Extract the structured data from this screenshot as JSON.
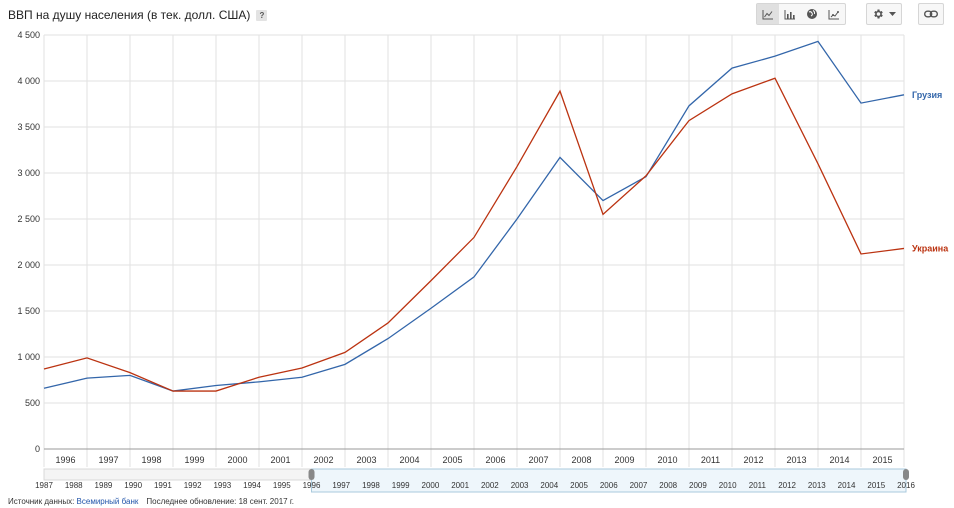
{
  "header": {
    "title": "ВВП на душу населения (в тек. долл. США)",
    "help_label": "?"
  },
  "toolbar": {
    "view_icons": [
      "line-chart-icon",
      "bar-chart-icon",
      "globe-icon",
      "trend-chart-icon"
    ],
    "settings_icon": "gear-icon",
    "dropdown_icon": "caret-down-icon",
    "link_icon": "link-icon"
  },
  "footer": {
    "source_label": "Источник данных:",
    "source_link": "Всемирный банк",
    "updated_text": "Последнее обновление: 18 сент. 2017 г."
  },
  "chart_data": {
    "type": "line",
    "title": "ВВП на душу населения (в тек. долл. США)",
    "x_tick_labels": [
      "1996",
      "1997",
      "1998",
      "1999",
      "2000",
      "2001",
      "2002",
      "2003",
      "2004",
      "2005",
      "2006",
      "2007",
      "2008",
      "2009",
      "2010",
      "2011",
      "2012",
      "2013",
      "2014",
      "2015"
    ],
    "x": [
      1996,
      1997,
      1998,
      1999,
      2000,
      2001,
      2002,
      2003,
      2004,
      2005,
      2006,
      2007,
      2008,
      2009,
      2010,
      2011,
      2012,
      2013,
      2014,
      2015,
      2016
    ],
    "xlim": [
      1996,
      2016
    ],
    "ylim": [
      0,
      4500
    ],
    "y_ticks": [
      0,
      500,
      1000,
      1500,
      2000,
      2500,
      3000,
      3500,
      4000,
      4500
    ],
    "y_tick_labels": [
      "0",
      "500",
      "1 000",
      "1 500",
      "2 000",
      "2 500",
      "3 000",
      "3 500",
      "4 000",
      "4 500"
    ],
    "grid": true,
    "legend": "line-end labels at right",
    "series": [
      {
        "name": "Грузия",
        "color": "#3366aa",
        "values": [
          660,
          770,
          800,
          630,
          690,
          730,
          780,
          920,
          1200,
          1530,
          1870,
          2500,
          3170,
          2700,
          2960,
          3730,
          4140,
          4270,
          4430,
          3760,
          3850
        ]
      },
      {
        "name": "Украина",
        "color": "#bb3311",
        "values": [
          870,
          990,
          830,
          630,
          630,
          780,
          880,
          1050,
          1370,
          1830,
          2300,
          3070,
          3890,
          2550,
          2970,
          3570,
          3860,
          4030,
          3100,
          2120,
          2180
        ]
      }
    ],
    "navigator": {
      "tick_labels": [
        "1987",
        "1988",
        "1989",
        "1990",
        "1991",
        "1992",
        "1993",
        "1994",
        "1995",
        "1996",
        "1997",
        "1998",
        "1999",
        "2000",
        "2001",
        "2002",
        "2003",
        "2004",
        "2005",
        "2006",
        "2007",
        "2008",
        "2009",
        "2010",
        "2011",
        "2012",
        "2013",
        "2014",
        "2015",
        "2016"
      ],
      "range": [
        1987,
        2016
      ],
      "selected": [
        1996,
        2016
      ]
    }
  }
}
